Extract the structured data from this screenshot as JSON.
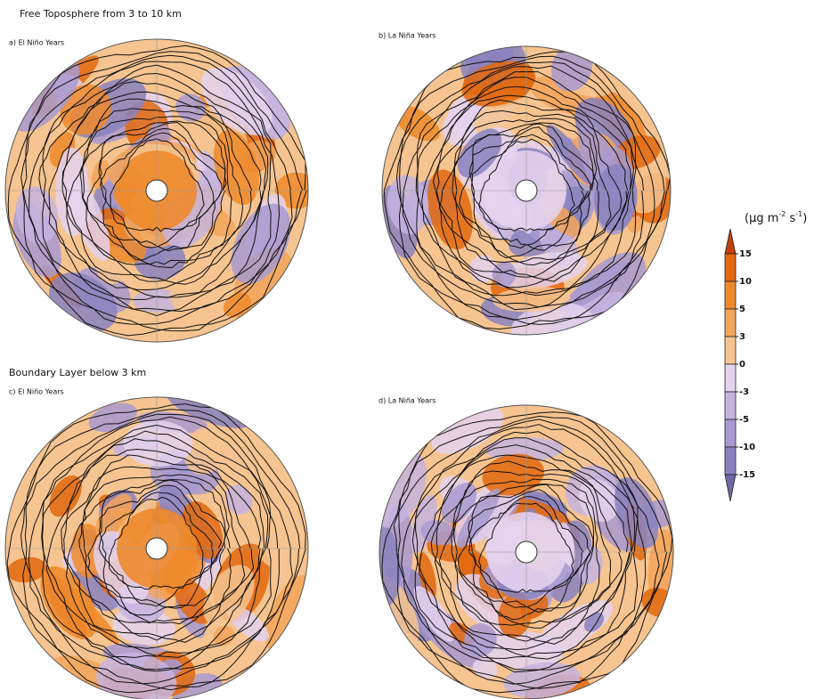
{
  "sections": [
    {
      "title": "Free Toposphere from 3 to 10 km",
      "panels": [
        "a) El Niño Years",
        "b)  La Niña Years"
      ]
    },
    {
      "title": "Boundary Layer below 3 km",
      "panels": [
        "c) El Niño Years",
        "d) La Niña Years"
      ]
    }
  ],
  "colorbar": {
    "label": {
      "start": "(μg m",
      "exp1": "-2",
      "mid": " s",
      "exp2": "-1",
      "end": ")"
    },
    "levels": [
      15,
      10,
      5,
      3,
      0,
      -3,
      -5,
      -10,
      -15
    ],
    "colors": [
      "#c0400c",
      "#e2680e",
      "#ee8a2c",
      "#f3a55a",
      "#f6c490",
      "#e4d2ee",
      "#c6b4e0",
      "#a89ad0",
      "#8a82c0",
      "#6e6aaa"
    ]
  }
}
